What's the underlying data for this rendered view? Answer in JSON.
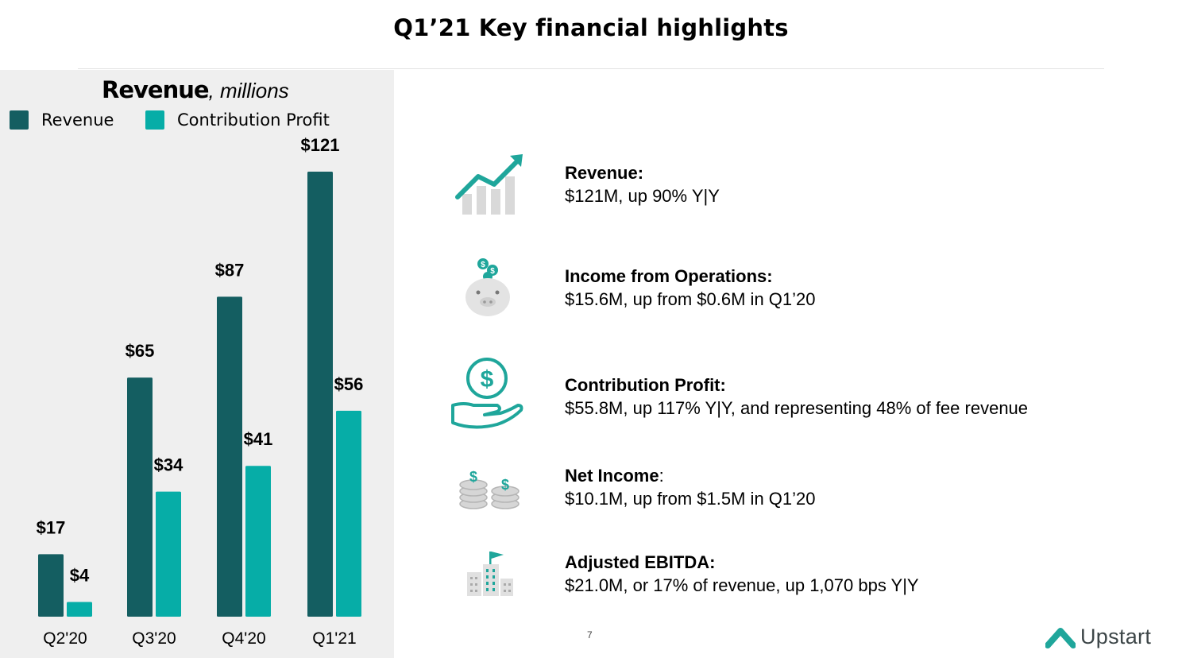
{
  "page": {
    "title": "Q1’21 Key financial highlights",
    "page_number": "7",
    "brand": "Upstart"
  },
  "colors": {
    "revenue": "#145e61",
    "contribution_profit": "#06ada7",
    "accent": "#1fa69b",
    "panel_bg": "#efefef"
  },
  "chart_data": {
    "type": "bar",
    "title": "Revenue",
    "subtitle": ", millions",
    "categories": [
      "Q2'20",
      "Q3'20",
      "Q4'20",
      "Q1'21"
    ],
    "series": [
      {
        "name": "Revenue",
        "values": [
          17,
          65,
          87,
          121
        ],
        "labels": [
          "$17",
          "$65",
          "$87",
          "$121"
        ]
      },
      {
        "name": "Contribution Profit",
        "values": [
          4,
          34,
          41,
          56
        ],
        "labels": [
          "$4",
          "$34",
          "$41",
          "$56"
        ]
      }
    ],
    "ylim": [
      0,
      121
    ],
    "grid": false,
    "legend_position": "top-left"
  },
  "highlights": [
    {
      "icon": "growth-chart-icon",
      "title": "Revenue:",
      "title_suffix": "",
      "value": "$121M, up 90% Y|Y"
    },
    {
      "icon": "piggy-bank-icon",
      "title": "Income from Operations:",
      "title_suffix": "",
      "value": "$15.6M, up from $0.6M in Q1’20"
    },
    {
      "icon": "money-hand-icon",
      "title": "Contribution Profit:",
      "title_suffix": "",
      "value": "$55.8M, up 117% Y|Y, and representing 48% of fee revenue"
    },
    {
      "icon": "coin-stacks-icon",
      "title": "Net Income",
      "title_suffix": ":",
      "value": "$10.1M, up from $1.5M in Q1’20"
    },
    {
      "icon": "buildings-flag-icon",
      "title": "Adjusted EBITDA:",
      "title_suffix": "",
      "value": "$21.0M, or 17% of revenue, up 1,070 bps Y|Y"
    }
  ]
}
